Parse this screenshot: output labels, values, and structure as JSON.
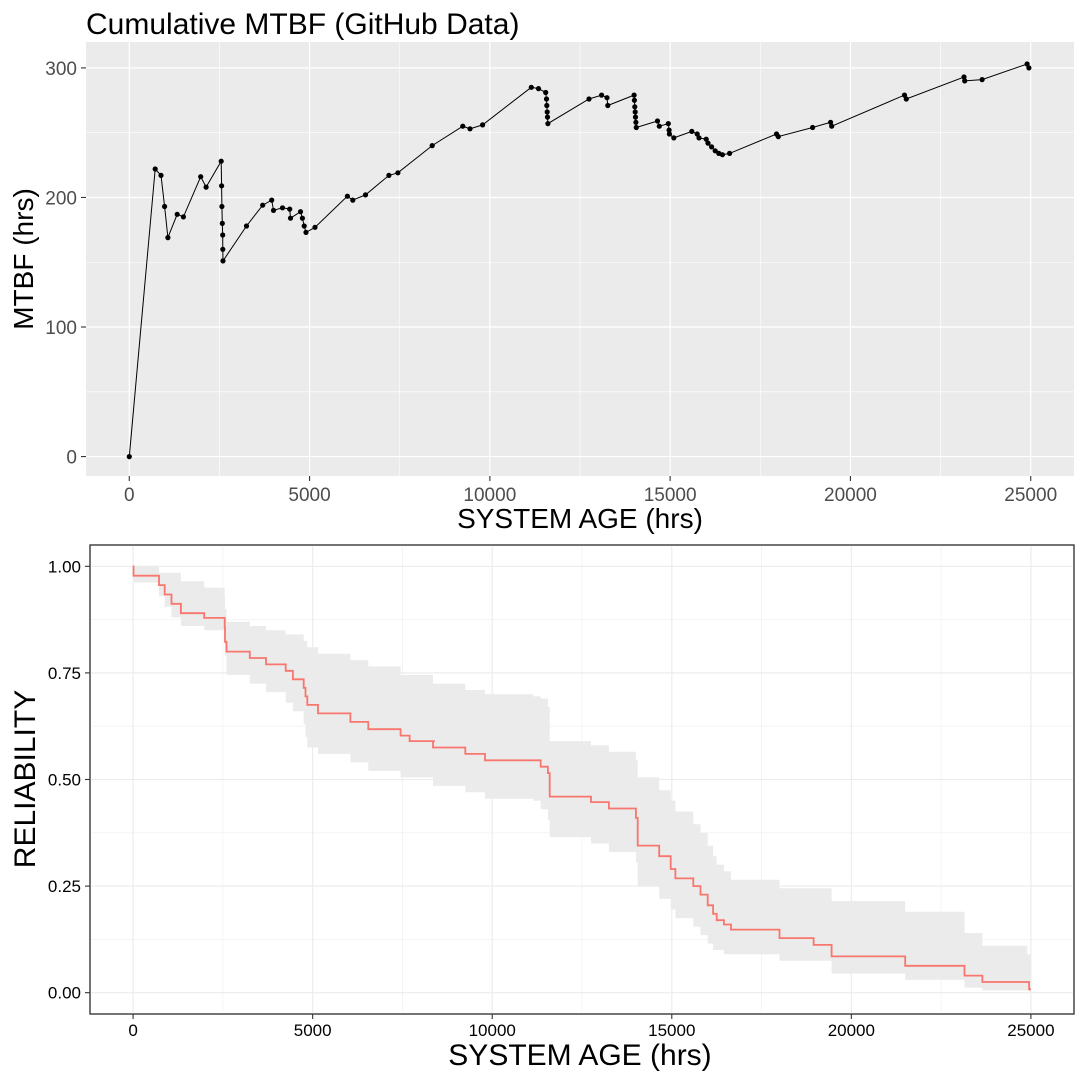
{
  "chart_data": [
    {
      "type": "line",
      "title": "Cumulative MTBF (GitHub Data)",
      "xlabel": "SYSTEM AGE (hrs)",
      "ylabel": "MTBF (hrs)",
      "xlim": [
        -1200,
        26200
      ],
      "ylim": [
        -15,
        320
      ],
      "xticks": [
        0,
        5000,
        10000,
        15000,
        20000,
        25000
      ],
      "yticks": [
        0,
        100,
        200,
        300
      ],
      "grid": true,
      "legend": "none",
      "series": [
        {
          "markers": true,
          "points": [
            [
              0,
              0
            ],
            [
              720,
              222
            ],
            [
              880,
              217
            ],
            [
              980,
              193
            ],
            [
              1070,
              169
            ],
            [
              1330,
              187
            ],
            [
              1500,
              185
            ],
            [
              1980,
              216
            ],
            [
              2130,
              208
            ],
            [
              2550,
              228
            ],
            [
              2560,
              209
            ],
            [
              2570,
              193
            ],
            [
              2580,
              180
            ],
            [
              2590,
              171
            ],
            [
              2595,
              160
            ],
            [
              2600,
              151
            ],
            [
              3250,
              178
            ],
            [
              3700,
              194
            ],
            [
              3950,
              198
            ],
            [
              4000,
              190
            ],
            [
              4250,
              192
            ],
            [
              4450,
              191
            ],
            [
              4470,
              184
            ],
            [
              4750,
              189
            ],
            [
              4800,
              184
            ],
            [
              4850,
              178
            ],
            [
              4900,
              173
            ],
            [
              5150,
              177
            ],
            [
              6050,
              201
            ],
            [
              6200,
              198
            ],
            [
              6550,
              202
            ],
            [
              7200,
              217
            ],
            [
              7450,
              219
            ],
            [
              8400,
              240
            ],
            [
              9250,
              255
            ],
            [
              9450,
              253
            ],
            [
              9800,
              256
            ],
            [
              11150,
              285
            ],
            [
              11350,
              284
            ],
            [
              11550,
              281
            ],
            [
              11570,
              276
            ],
            [
              11580,
              271
            ],
            [
              11590,
              266
            ],
            [
              11600,
              262
            ],
            [
              11610,
              257
            ],
            [
              12750,
              276
            ],
            [
              13100,
              279
            ],
            [
              13250,
              277
            ],
            [
              13270,
              271
            ],
            [
              14000,
              279
            ],
            [
              14010,
              275
            ],
            [
              14020,
              270
            ],
            [
              14030,
              266
            ],
            [
              14040,
              262
            ],
            [
              14050,
              258
            ],
            [
              14060,
              254
            ],
            [
              14650,
              259
            ],
            [
              14700,
              255
            ],
            [
              14950,
              257
            ],
            [
              14970,
              252
            ],
            [
              14980,
              249
            ],
            [
              15100,
              246
            ],
            [
              15600,
              251
            ],
            [
              15750,
              249
            ],
            [
              15800,
              246
            ],
            [
              16000,
              245
            ],
            [
              16050,
              242
            ],
            [
              16150,
              239
            ],
            [
              16250,
              236
            ],
            [
              16350,
              234
            ],
            [
              16450,
              233
            ],
            [
              16650,
              234
            ],
            [
              17950,
              249
            ],
            [
              18000,
              247
            ],
            [
              18950,
              254
            ],
            [
              19450,
              258
            ],
            [
              19480,
              255
            ],
            [
              21500,
              279
            ],
            [
              21550,
              276
            ],
            [
              23150,
              293
            ],
            [
              23170,
              290
            ],
            [
              23650,
              291
            ],
            [
              24900,
              303
            ],
            [
              24950,
              300
            ]
          ]
        }
      ]
    },
    {
      "type": "line",
      "title": "",
      "xlabel": "SYSTEM AGE (hrs)",
      "ylabel": "RELIABILITY",
      "xlim": [
        -1200,
        26200
      ],
      "ylim": [
        -0.05,
        1.05
      ],
      "xticks": [
        0,
        5000,
        10000,
        15000,
        20000,
        25000
      ],
      "yticks": [
        0.0,
        0.25,
        0.5,
        0.75,
        1.0
      ],
      "ytick_labels": [
        "0.00",
        "0.25",
        "0.50",
        "0.75",
        "1.00"
      ],
      "grid": true,
      "legend": "none",
      "colors": {
        "line": "#F8766D",
        "band": "#EBEBEB"
      },
      "series": [
        {
          "step": [
            [
              0,
              1.0
            ],
            [
              10,
              0.978
            ],
            [
              720,
              0.956
            ],
            [
              880,
              0.934
            ],
            [
              1070,
              0.912
            ],
            [
              1330,
              0.89
            ],
            [
              1980,
              0.879
            ],
            [
              2550,
              0.857
            ],
            [
              2560,
              0.823
            ],
            [
              2600,
              0.8
            ],
            [
              3250,
              0.785
            ],
            [
              3700,
              0.77
            ],
            [
              4250,
              0.755
            ],
            [
              4450,
              0.735
            ],
            [
              4750,
              0.715
            ],
            [
              4800,
              0.695
            ],
            [
              4850,
              0.675
            ],
            [
              5150,
              0.655
            ],
            [
              6050,
              0.635
            ],
            [
              6550,
              0.618
            ],
            [
              7450,
              0.603
            ],
            [
              7700,
              0.59
            ],
            [
              8400,
              0.59
            ],
            [
              8350,
              0.575
            ],
            [
              9250,
              0.56
            ],
            [
              9800,
              0.545
            ],
            [
              11150,
              0.545
            ],
            [
              11350,
              0.53
            ],
            [
              11550,
              0.515
            ],
            [
              11600,
              0.46
            ],
            [
              12750,
              0.447
            ],
            [
              13250,
              0.432
            ],
            [
              14000,
              0.41
            ],
            [
              14050,
              0.345
            ],
            [
              14650,
              0.32
            ],
            [
              14970,
              0.29
            ],
            [
              15100,
              0.268
            ],
            [
              15600,
              0.25
            ],
            [
              15800,
              0.23
            ],
            [
              16000,
              0.205
            ],
            [
              16150,
              0.185
            ],
            [
              16250,
              0.17
            ],
            [
              16450,
              0.16
            ],
            [
              16650,
              0.148
            ],
            [
              17950,
              0.148
            ],
            [
              18000,
              0.128
            ],
            [
              18950,
              0.112
            ],
            [
              19450,
              0.085
            ],
            [
              21500,
              0.063
            ],
            [
              23150,
              0.04
            ],
            [
              23650,
              0.025
            ],
            [
              24900,
              0.025
            ],
            [
              24950,
              0.008
            ],
            [
              25000,
              0.008
            ]
          ],
          "lower": [
            [
              0,
              1.0
            ],
            [
              10,
              0.962
            ],
            [
              720,
              0.93
            ],
            [
              880,
              0.905
            ],
            [
              1070,
              0.88
            ],
            [
              1330,
              0.86
            ],
            [
              1980,
              0.85
            ],
            [
              2550,
              0.825
            ],
            [
              2560,
              0.79
            ],
            [
              2600,
              0.745
            ],
            [
              3250,
              0.725
            ],
            [
              3700,
              0.705
            ],
            [
              4250,
              0.68
            ],
            [
              4450,
              0.66
            ],
            [
              4750,
              0.63
            ],
            [
              4800,
              0.6
            ],
            [
              4850,
              0.575
            ],
            [
              5150,
              0.56
            ],
            [
              6050,
              0.54
            ],
            [
              6550,
              0.52
            ],
            [
              7450,
              0.505
            ],
            [
              8350,
              0.485
            ],
            [
              9250,
              0.47
            ],
            [
              9800,
              0.455
            ],
            [
              11150,
              0.45
            ],
            [
              11350,
              0.43
            ],
            [
              11550,
              0.405
            ],
            [
              11600,
              0.365
            ],
            [
              12750,
              0.35
            ],
            [
              13250,
              0.33
            ],
            [
              14000,
              0.305
            ],
            [
              14050,
              0.25
            ],
            [
              14650,
              0.22
            ],
            [
              14970,
              0.195
            ],
            [
              15100,
              0.175
            ],
            [
              15600,
              0.155
            ],
            [
              15800,
              0.135
            ],
            [
              16000,
              0.115
            ],
            [
              16150,
              0.1
            ],
            [
              16450,
              0.09
            ],
            [
              18000,
              0.075
            ],
            [
              19450,
              0.045
            ],
            [
              21500,
              0.03
            ],
            [
              23150,
              0.012
            ],
            [
              23650,
              0.005
            ],
            [
              24950,
              0.0
            ],
            [
              25000,
              0.0
            ]
          ],
          "upper": [
            [
              0,
              1.0
            ],
            [
              720,
              0.985
            ],
            [
              1330,
              0.965
            ],
            [
              1980,
              0.95
            ],
            [
              2550,
              0.93
            ],
            [
              2560,
              0.9
            ],
            [
              2600,
              0.87
            ],
            [
              3250,
              0.86
            ],
            [
              3700,
              0.85
            ],
            [
              4250,
              0.84
            ],
            [
              4750,
              0.825
            ],
            [
              4850,
              0.81
            ],
            [
              5150,
              0.795
            ],
            [
              6050,
              0.78
            ],
            [
              6550,
              0.765
            ],
            [
              7450,
              0.745
            ],
            [
              8350,
              0.725
            ],
            [
              9250,
              0.71
            ],
            [
              9800,
              0.7
            ],
            [
              11150,
              0.695
            ],
            [
              11350,
              0.69
            ],
            [
              11550,
              0.67
            ],
            [
              11600,
              0.59
            ],
            [
              12750,
              0.58
            ],
            [
              13250,
              0.565
            ],
            [
              14000,
              0.545
            ],
            [
              14050,
              0.505
            ],
            [
              14650,
              0.475
            ],
            [
              14970,
              0.45
            ],
            [
              15100,
              0.425
            ],
            [
              15600,
              0.395
            ],
            [
              15800,
              0.375
            ],
            [
              16000,
              0.345
            ],
            [
              16150,
              0.32
            ],
            [
              16250,
              0.3
            ],
            [
              16450,
              0.285
            ],
            [
              16650,
              0.265
            ],
            [
              18000,
              0.245
            ],
            [
              19450,
              0.215
            ],
            [
              21500,
              0.19
            ],
            [
              23150,
              0.14
            ],
            [
              23650,
              0.11
            ],
            [
              24900,
              0.09
            ],
            [
              25000,
              0.08
            ]
          ]
        }
      ]
    }
  ]
}
